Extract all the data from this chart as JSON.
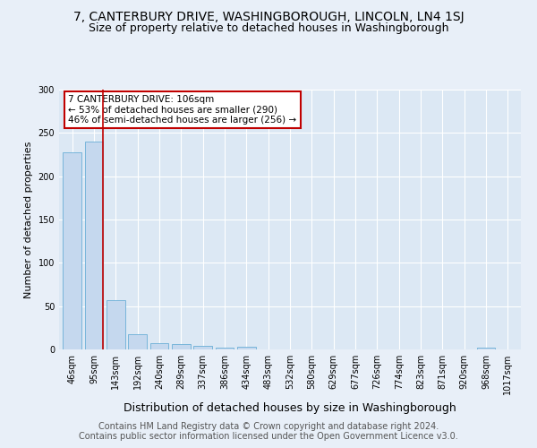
{
  "title1": "7, CANTERBURY DRIVE, WASHINGBOROUGH, LINCOLN, LN4 1SJ",
  "title2": "Size of property relative to detached houses in Washingborough",
  "xlabel": "Distribution of detached houses by size in Washingborough",
  "ylabel": "Number of detached properties",
  "annotation_title": "7 CANTERBURY DRIVE: 106sqm",
  "annotation_line2": "← 53% of detached houses are smaller (290)",
  "annotation_line3": "46% of semi-detached houses are larger (256) →",
  "footer1": "Contains HM Land Registry data © Crown copyright and database right 2024.",
  "footer2": "Contains public sector information licensed under the Open Government Licence v3.0.",
  "bin_labels": [
    "46sqm",
    "95sqm",
    "143sqm",
    "192sqm",
    "240sqm",
    "289sqm",
    "337sqm",
    "386sqm",
    "434sqm",
    "483sqm",
    "532sqm",
    "580sqm",
    "629sqm",
    "677sqm",
    "726sqm",
    "774sqm",
    "823sqm",
    "871sqm",
    "920sqm",
    "968sqm",
    "1017sqm"
  ],
  "bar_values": [
    228,
    240,
    57,
    18,
    7,
    6,
    4,
    2,
    3,
    0,
    0,
    0,
    0,
    0,
    0,
    0,
    0,
    0,
    0,
    2,
    0
  ],
  "bar_color": "#c5d8ee",
  "bar_edge_color": "#6aaed6",
  "marker_color": "#c00000",
  "ylim": [
    0,
    300
  ],
  "yticks": [
    0,
    50,
    100,
    150,
    200,
    250,
    300
  ],
  "bg_color": "#e8eff8",
  "plot_bg_color": "#dce8f4",
  "annotation_box_color": "#ffffff",
  "annotation_box_edge": "#c00000",
  "title1_fontsize": 10,
  "title2_fontsize": 9,
  "xlabel_fontsize": 9,
  "ylabel_fontsize": 8,
  "tick_fontsize": 7,
  "footer_fontsize": 7,
  "annotation_fontsize": 7.5
}
